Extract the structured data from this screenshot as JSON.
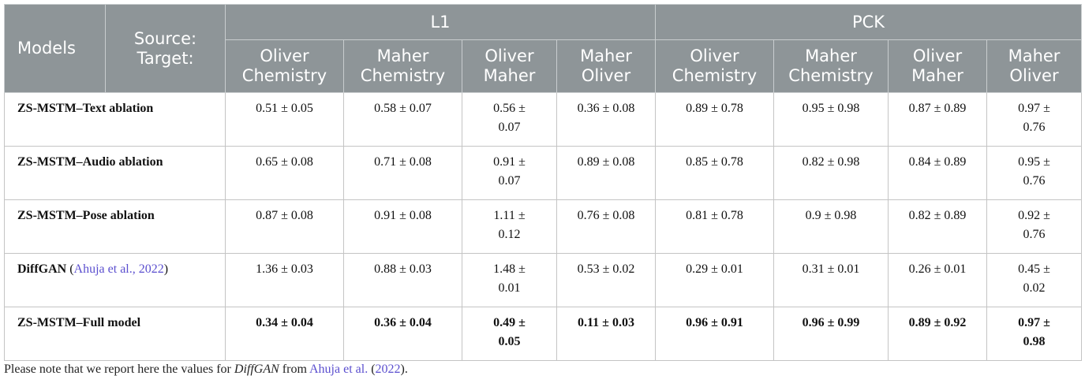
{
  "header": {
    "models": "Models",
    "source_target": [
      "Source:",
      "Target:"
    ],
    "groups": [
      "L1",
      "PCK"
    ],
    "columns": [
      [
        "Oliver",
        "Chemistry"
      ],
      [
        "Maher",
        "Chemistry"
      ],
      [
        "Oliver",
        "Maher"
      ],
      [
        "Maher",
        "Oliver"
      ],
      [
        "Oliver",
        "Chemistry"
      ],
      [
        "Maher",
        "Chemistry"
      ],
      [
        "Oliver",
        "Maher"
      ],
      [
        "Maher",
        "Oliver"
      ]
    ]
  },
  "table": {
    "rows": [
      {
        "model": [
          "ZS-MSTM–Text ablation"
        ],
        "cells": [
          "0.51 ± 0.05",
          "0.58 ± 0.07",
          "0.56 ± 0.07",
          "0.36 ± 0.08",
          "0.89 ± 0.78",
          "0.95 ± 0.98",
          "0.87 ± 0.89",
          "0.97 ± 0.76"
        ]
      },
      {
        "model": [
          "ZS-MSTM–Audio ablation"
        ],
        "cells": [
          "0.65 ± 0.08",
          "0.71 ± 0.08",
          "0.91 ± 0.07",
          "0.89 ± 0.08",
          "0.85 ± 0.78",
          "0.82 ± 0.98",
          "0.84 ± 0.89",
          "0.95 ± 0.76"
        ]
      },
      {
        "model": [
          "ZS-MSTM–Pose ablation"
        ],
        "cells": [
          "0.87 ± 0.08",
          "0.91 ± 0.08",
          "1.11 ± 0.12",
          "0.76 ± 0.08",
          "0.81 ± 0.78",
          "0.9 ± 0.98",
          "0.82 ± 0.89",
          "0.92 ± 0.76"
        ]
      },
      {
        "model": [
          "DiffGAN",
          " (",
          "Ahuja et al., 2022",
          ")"
        ],
        "cells": [
          "1.36 ± 0.03",
          "0.88 ± 0.03",
          "1.48 ± 0.01",
          "0.53 ± 0.02",
          "0.29 ± 0.01",
          "0.31 ± 0.01",
          "0.26 ± 0.01",
          "0.45 ± 0.02"
        ]
      },
      {
        "model": [
          "ZS-MSTM–Full model"
        ],
        "cells": [
          "0.34 ± 0.04",
          "0.36 ± 0.04",
          "0.49 ± 0.05",
          "0.11 ± 0.03",
          "0.96 ± 0.91",
          "0.96 ± 0.99",
          "0.89 ± 0.92",
          "0.97 ± 0.98"
        ]
      }
    ]
  },
  "note": [
    "Please note that we report here the values for ",
    "DiffGAN",
    " from ",
    "Ahuja et al.",
    " (",
    "2022",
    ")."
  ]
}
